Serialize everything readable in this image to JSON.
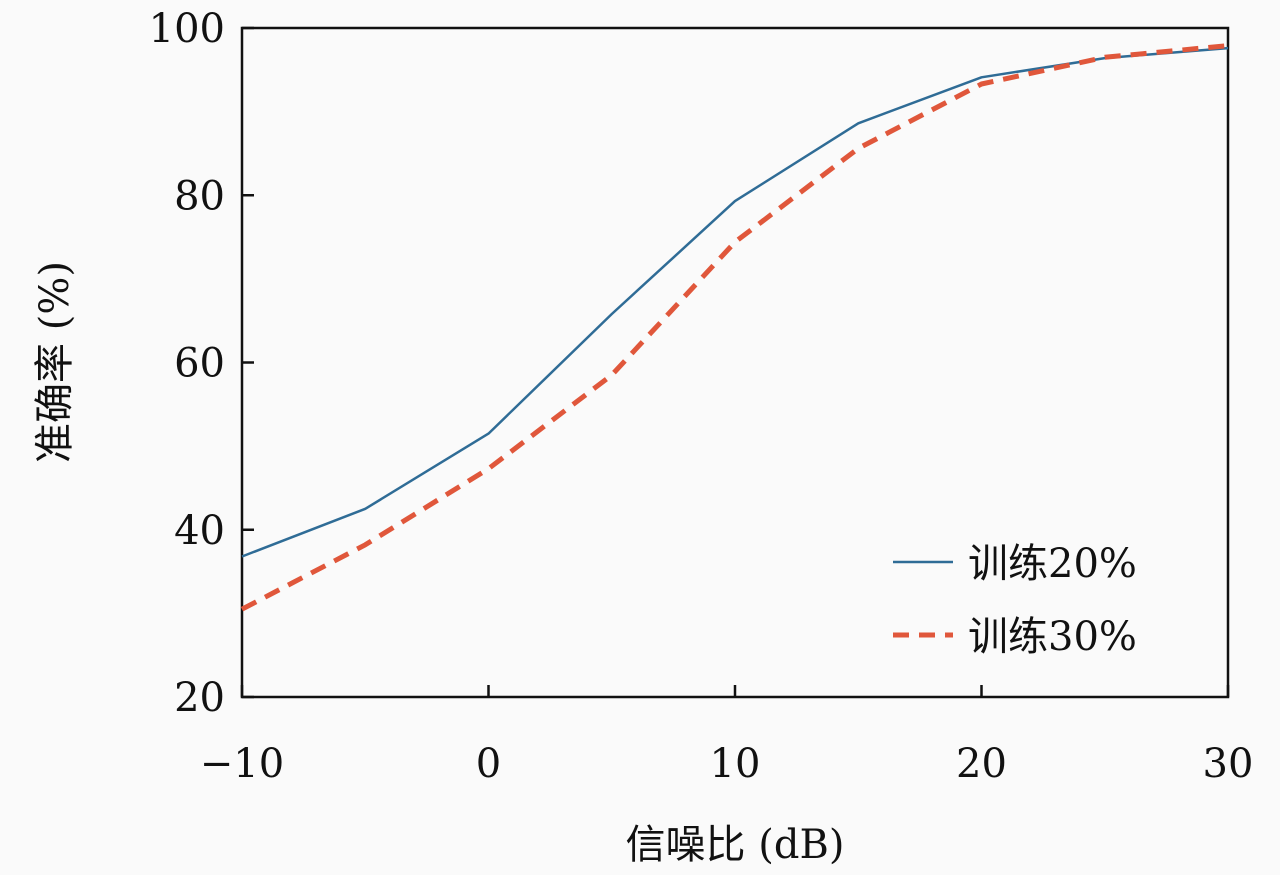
{
  "chart_data": {
    "type": "line",
    "xlabel": "信噪比 (dB)",
    "ylabel": "准确率 (%)",
    "xlim": [
      -10,
      30
    ],
    "ylim": [
      20,
      100
    ],
    "xticks": [
      -10,
      0,
      10,
      20,
      30
    ],
    "xtick_labels": [
      "−10",
      "0",
      "10",
      "20",
      "30"
    ],
    "yticks": [
      20,
      40,
      60,
      80,
      100
    ],
    "ytick_labels": [
      "20",
      "40",
      "60",
      "80",
      "100"
    ],
    "grid": false,
    "legend_position": "lower-right",
    "series": [
      {
        "name": "训练20%",
        "style": "solid",
        "color": "#2f6c96",
        "x": [
          -10,
          -5,
          0,
          5,
          10,
          15,
          20,
          25,
          30
        ],
        "y": [
          36.8,
          42.5,
          51.5,
          65.8,
          79.3,
          88.6,
          94.1,
          96.4,
          97.6
        ]
      },
      {
        "name": "训练30%",
        "style": "dashed",
        "color": "#e0573b",
        "x": [
          -10,
          -5,
          0,
          5,
          10,
          15,
          20,
          25,
          30
        ],
        "y": [
          30.5,
          38.2,
          47.3,
          58.5,
          74.4,
          85.6,
          93.3,
          96.5,
          97.9
        ]
      }
    ]
  }
}
